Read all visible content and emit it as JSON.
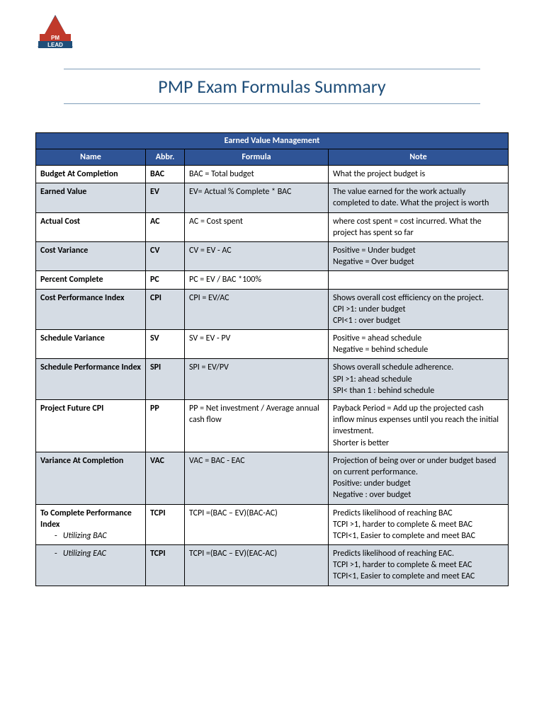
{
  "title": "PMP Exam Formulas Summary",
  "section_title": "Earned Value Management",
  "headers": {
    "name": "Name",
    "abbr": "Abbr.",
    "formula": "Formula",
    "note": "Note"
  },
  "colors": {
    "header_bg": "#2f5496",
    "header_fg": "#ffffff",
    "shade_bg": "#d5dce4",
    "title_color": "#1f4e79",
    "rule_color": "#7f9db9",
    "border": "#000000"
  },
  "logo": {
    "red_top": "#c0392b",
    "blue_bottom": "#1f4e79",
    "text_top": "PM",
    "text_bottom": "LEAD"
  },
  "rows": [
    {
      "shade": false,
      "name": "Budget At Completion",
      "abbr": "BAC",
      "formula": "BAC = Total budget",
      "note": "What the project budget is"
    },
    {
      "shade": true,
      "name": "Earned Value",
      "abbr": "EV",
      "formula": "EV= Actual % Complete * BAC",
      "note": "The value earned for the work actually completed to date. What the project is worth"
    },
    {
      "shade": false,
      "name": "Actual Cost",
      "abbr": "AC",
      "formula": "AC = Cost spent",
      "note": "where cost spent = cost incurred. What the project has spent so far"
    },
    {
      "shade": true,
      "name": "Cost Variance",
      "abbr": "CV",
      "formula": "CV = EV - AC",
      "note": "Positive = Under budget\nNegative = Over budget"
    },
    {
      "shade": false,
      "name": "Percent Complete",
      "abbr": "PC",
      "formula": "PC = EV / BAC *100%",
      "note": ""
    },
    {
      "shade": true,
      "name": "Cost Performance Index",
      "abbr": "CPI",
      "formula": "CPI = EV/AC",
      "note": "Shows overall cost efficiency on the project.\nCPI >1: under budget\nCPI<1 : over budget"
    },
    {
      "shade": false,
      "name": "Schedule Variance",
      "abbr": "SV",
      "formula": "SV = EV - PV",
      "note": "Positive = ahead schedule\nNegative = behind schedule"
    },
    {
      "shade": true,
      "name": "Schedule Performance Index",
      "abbr": "SPI",
      "formula": "SPI = EV/PV",
      "note": "Shows overall schedule adherence.\nSPI >1:  ahead schedule\nSPI< than 1 : behind schedule"
    },
    {
      "shade": false,
      "name": "Project Future CPI",
      "abbr": "PP",
      "formula": "PP = Net investment / Average annual cash flow",
      "note": "Payback Period = Add up the projected cash inflow minus expenses until you reach the initial investment.\nShorter is better"
    },
    {
      "shade": true,
      "name": "Variance At Completion",
      "abbr": "VAC",
      "formula": "VAC = BAC - EAC",
      "note": "Projection of being over or under budget based on current performance.\nPositive: under budget\nNegative : over budget"
    },
    {
      "shade": false,
      "name_html": "To Complete Performance Index\n<sub>Utilizing BAC</sub>",
      "abbr": "TCPI",
      "formula": "TCPI =(BAC – EV)(BAC-AC)",
      "note": "Predicts likelihood of reaching BAC\nTCPI >1, harder to complete & meet BAC\nTCPI<1,  Easier to complete and meet BAC"
    },
    {
      "shade": true,
      "name_html": "<subonly>Utilizing EAC</subonly>",
      "abbr": "TCPI",
      "formula": "TCPI =(BAC – EV)(EAC-AC)",
      "note": "Predicts likelihood of reaching EAC.\nTCPI >1, harder to complete & meet EAC\nTCPI<1, Easier to complete and meet EAC"
    }
  ]
}
